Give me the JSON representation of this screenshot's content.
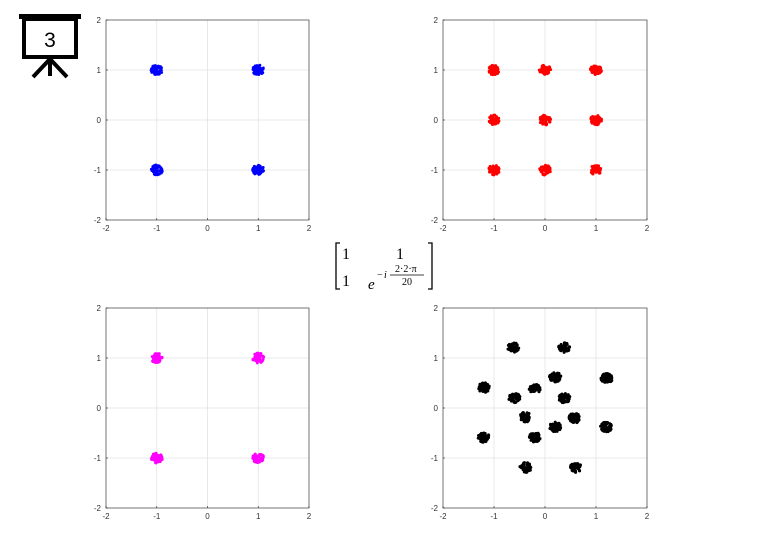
{
  "slide_badge": {
    "number": "3",
    "icon": "presentation-board-icon"
  },
  "matrix": {
    "r1c1": "1",
    "r1c2": "1",
    "r2c1": "1",
    "base": "e",
    "exp_sign": "−",
    "exp_i": "i",
    "numerator_highlight": "2",
    "numerator_rest": "·2·π",
    "denominator": "20",
    "highlight_color": "#cc0000"
  },
  "chart_data": [
    {
      "type": "scatter",
      "color": "#0000ff",
      "xlim": [
        -2,
        2
      ],
      "ylim": [
        -2,
        2
      ],
      "xticks": [
        "-2",
        "-1",
        "0",
        "1",
        "2"
      ],
      "yticks": [
        "-2",
        "-1",
        "0",
        "1",
        "2"
      ],
      "grid": true,
      "clusters": [
        [
          -1,
          1
        ],
        [
          1,
          1
        ],
        [
          -1,
          -1
        ],
        [
          1,
          -1
        ]
      ]
    },
    {
      "type": "scatter",
      "color": "#ff0000",
      "xlim": [
        -2,
        2
      ],
      "ylim": [
        -2,
        2
      ],
      "xticks": [
        "-2",
        "-1",
        "0",
        "1",
        "2"
      ],
      "yticks": [
        "-2",
        "-1",
        "0",
        "1",
        "2"
      ],
      "grid": true,
      "clusters": [
        [
          -1,
          1
        ],
        [
          0,
          1
        ],
        [
          1,
          1
        ],
        [
          -1,
          0
        ],
        [
          0,
          0
        ],
        [
          1,
          0
        ],
        [
          -1,
          -1
        ],
        [
          0,
          -1
        ],
        [
          1,
          -1
        ]
      ]
    },
    {
      "type": "scatter",
      "color": "#ff00ff",
      "xlim": [
        -2,
        2
      ],
      "ylim": [
        -2,
        2
      ],
      "xticks": [
        "-2",
        "-1",
        "0",
        "1",
        "2"
      ],
      "yticks": [
        "-2",
        "-1",
        "0",
        "1",
        "2"
      ],
      "grid": true,
      "clusters": [
        [
          -1,
          1
        ],
        [
          1,
          1
        ],
        [
          -1,
          -1
        ],
        [
          1,
          -1
        ]
      ]
    },
    {
      "type": "scatter",
      "color": "#000000",
      "xlim": [
        -2,
        2
      ],
      "ylim": [
        -2,
        2
      ],
      "xticks": [
        "-2",
        "-1",
        "0",
        "1",
        "2"
      ],
      "yticks": [
        "-2",
        "-1",
        "0",
        "1",
        "2"
      ],
      "grid": true,
      "clusters": [
        [
          -0.62,
          1.21
        ],
        [
          0.38,
          1.21
        ],
        [
          1.21,
          0.59
        ],
        [
          -1.2,
          0.41
        ],
        [
          0.2,
          0.62
        ],
        [
          -0.2,
          0.38
        ],
        [
          -0.6,
          0.2
        ],
        [
          0.38,
          0.2
        ],
        [
          -0.38,
          -0.18
        ],
        [
          0.58,
          -0.2
        ],
        [
          0.2,
          -0.38
        ],
        [
          -0.2,
          -0.58
        ],
        [
          1.2,
          -0.38
        ],
        [
          -1.2,
          -0.59
        ],
        [
          -0.38,
          -1.19
        ],
        [
          0.6,
          -1.19
        ]
      ]
    }
  ]
}
